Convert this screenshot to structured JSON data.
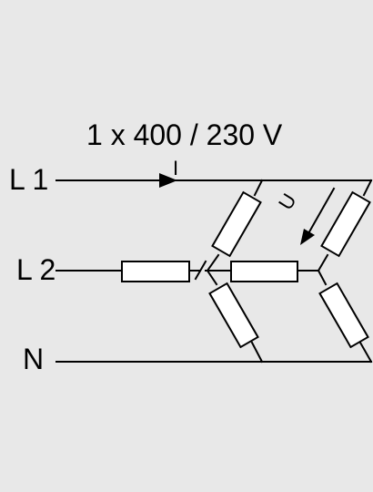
{
  "diagram": {
    "supply_label": "1 x 400 / 230 V",
    "lines": {
      "l1": "L 1",
      "l2": "L 2",
      "n": "N"
    },
    "current_symbol": "I",
    "voltage_symbol": "U",
    "colors": {
      "background": "#e8e8e8",
      "stroke": "#000000",
      "resistor_fill": "#ffffff"
    }
  }
}
